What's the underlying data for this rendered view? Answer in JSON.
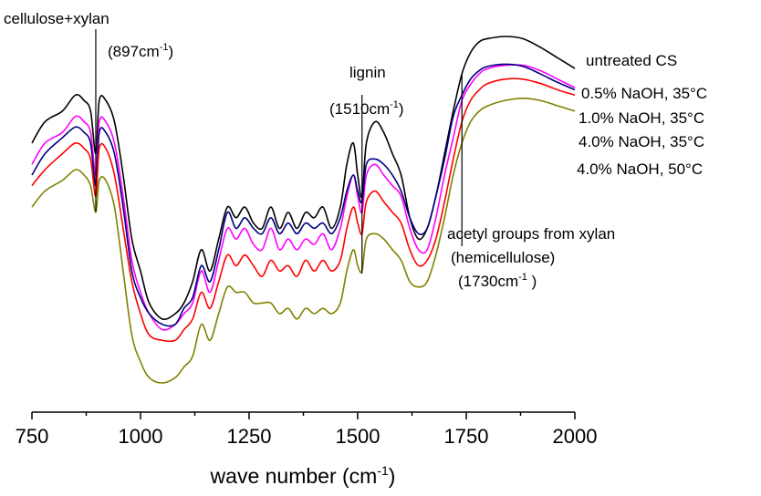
{
  "chart_data": {
    "type": "line",
    "title": "",
    "xlabel": "wave number (cm",
    "xlabel_sup": "-1",
    "xlabel_end": ")",
    "ylabel": "",
    "xlim": [
      750,
      2000
    ],
    "x_ticks": [
      750,
      1000,
      1250,
      1500,
      1750,
      2000
    ],
    "x_tick_labels": [
      "750",
      "1000",
      "1250",
      "1500",
      "1750",
      "2000"
    ],
    "grid": false,
    "legend_position": "right",
    "x": [
      750,
      780,
      820,
      850,
      870,
      885,
      897,
      905,
      920,
      940,
      960,
      980,
      1000,
      1020,
      1050,
      1080,
      1100,
      1120,
      1140,
      1160,
      1180,
      1200,
      1220,
      1240,
      1260,
      1280,
      1300,
      1320,
      1340,
      1360,
      1380,
      1400,
      1420,
      1440,
      1460,
      1475,
      1490,
      1500,
      1510,
      1520,
      1540,
      1560,
      1580,
      1600,
      1620,
      1640,
      1660,
      1680,
      1700,
      1720,
      1740,
      1760,
      1780,
      1800,
      1840,
      1880,
      1920,
      1960,
      2000
    ],
    "series": [
      {
        "name": "untreated CS",
        "color": "#000000",
        "values": [
          -0.4,
          -0.2,
          -0.1,
          0.05,
          0.0,
          -0.1,
          -0.5,
          0.0,
          0.0,
          -0.2,
          -0.7,
          -1.3,
          -1.6,
          -1.9,
          -2.05,
          -2.0,
          -1.9,
          -1.7,
          -1.4,
          -1.6,
          -1.3,
          -1.0,
          -1.1,
          -1.0,
          -1.15,
          -1.2,
          -1.0,
          -1.2,
          -1.05,
          -1.2,
          -1.05,
          -1.1,
          -1.0,
          -1.2,
          -1.0,
          -0.6,
          -0.4,
          -0.7,
          -0.9,
          -0.4,
          -0.2,
          -0.3,
          -0.5,
          -0.7,
          -1.1,
          -1.3,
          -1.2,
          -0.9,
          -0.5,
          -0.1,
          0.25,
          0.45,
          0.55,
          0.58,
          0.6,
          0.58,
          0.5,
          0.4,
          0.3
        ]
      },
      {
        "name": "0.5% NaOH, 35°C",
        "color": "#ff00ff",
        "values": [
          -0.6,
          -0.4,
          -0.3,
          -0.15,
          -0.2,
          -0.3,
          -0.7,
          -0.2,
          -0.2,
          -0.4,
          -0.9,
          -1.5,
          -1.8,
          -2.0,
          -2.15,
          -2.1,
          -2.0,
          -1.9,
          -1.6,
          -1.8,
          -1.5,
          -1.2,
          -1.3,
          -1.2,
          -1.35,
          -1.4,
          -1.2,
          -1.4,
          -1.3,
          -1.4,
          -1.3,
          -1.35,
          -1.25,
          -1.4,
          -1.2,
          -0.9,
          -0.7,
          -0.9,
          -1.05,
          -0.7,
          -0.6,
          -0.7,
          -0.8,
          -0.9,
          -1.2,
          -1.4,
          -1.4,
          -1.1,
          -0.7,
          -0.35,
          0.0,
          0.15,
          0.25,
          0.3,
          0.33,
          0.33,
          0.28,
          0.2,
          0.12
        ]
      },
      {
        "name": "1.0% NaOH, 35°C",
        "color": "#00007f",
        "values": [
          -0.7,
          -0.5,
          -0.35,
          -0.25,
          -0.3,
          -0.4,
          -0.8,
          -0.3,
          -0.3,
          -0.5,
          -1.0,
          -1.6,
          -1.85,
          -2.0,
          -2.1,
          -2.1,
          -1.95,
          -1.85,
          -1.55,
          -1.7,
          -1.4,
          -1.05,
          -1.2,
          -1.1,
          -1.2,
          -1.25,
          -1.1,
          -1.25,
          -1.15,
          -1.25,
          -1.15,
          -1.2,
          -1.15,
          -1.25,
          -1.1,
          -0.85,
          -0.7,
          -0.85,
          -0.95,
          -0.6,
          -0.55,
          -0.6,
          -0.7,
          -0.85,
          -1.1,
          -1.25,
          -1.2,
          -0.9,
          -0.55,
          -0.15,
          0.05,
          0.2,
          0.28,
          0.32,
          0.34,
          0.32,
          0.25,
          0.17,
          0.1
        ]
      },
      {
        "name": "4.0% NaOH, 35°C",
        "color": "#ff0000",
        "values": [
          -0.8,
          -0.65,
          -0.5,
          -0.4,
          -0.45,
          -0.55,
          -0.9,
          -0.45,
          -0.45,
          -0.7,
          -1.2,
          -1.7,
          -2.0,
          -2.2,
          -2.25,
          -2.25,
          -2.15,
          -2.05,
          -1.8,
          -1.95,
          -1.7,
          -1.45,
          -1.55,
          -1.45,
          -1.55,
          -1.65,
          -1.5,
          -1.6,
          -1.55,
          -1.65,
          -1.5,
          -1.6,
          -1.5,
          -1.6,
          -1.5,
          -1.2,
          -1.0,
          -1.15,
          -1.25,
          -0.95,
          -0.85,
          -0.95,
          -1.05,
          -1.15,
          -1.4,
          -1.55,
          -1.5,
          -1.3,
          -0.95,
          -0.55,
          -0.2,
          0.0,
          0.1,
          0.16,
          0.2,
          0.2,
          0.16,
          0.1,
          0.05
        ]
      },
      {
        "name": "4.0% NaOH, 50°C",
        "color": "#808000",
        "values": [
          -1.0,
          -0.85,
          -0.75,
          -0.65,
          -0.7,
          -0.8,
          -1.05,
          -0.75,
          -0.75,
          -1.0,
          -1.6,
          -2.2,
          -2.45,
          -2.6,
          -2.65,
          -2.6,
          -2.5,
          -2.4,
          -2.1,
          -2.25,
          -2.0,
          -1.75,
          -1.8,
          -1.8,
          -1.9,
          -1.9,
          -1.9,
          -2.0,
          -1.95,
          -2.05,
          -1.95,
          -2.0,
          -1.95,
          -2.0,
          -1.9,
          -1.6,
          -1.4,
          -1.55,
          -1.6,
          -1.3,
          -1.25,
          -1.3,
          -1.4,
          -1.5,
          -1.7,
          -1.75,
          -1.7,
          -1.45,
          -1.1,
          -0.7,
          -0.4,
          -0.2,
          -0.1,
          -0.05,
          0.0,
          0.02,
          0.0,
          -0.05,
          -0.1
        ]
      }
    ],
    "annotations": [
      {
        "line1": "cellulose+xylan",
        "line2": "(897cm",
        "sup2": "-1",
        "end2": ")",
        "marker_x": 897
      },
      {
        "line1": "lignin",
        "line2": "(1510cm",
        "sup2": "-1",
        "end2": ")",
        "marker_x": 1510
      },
      {
        "line1": "acetyl groups from xylan",
        "line2": "(hemicellulose)",
        "line3": "(1730cm",
        "sup3": "-1",
        "end3": " )",
        "marker_x": 1740
      }
    ]
  }
}
